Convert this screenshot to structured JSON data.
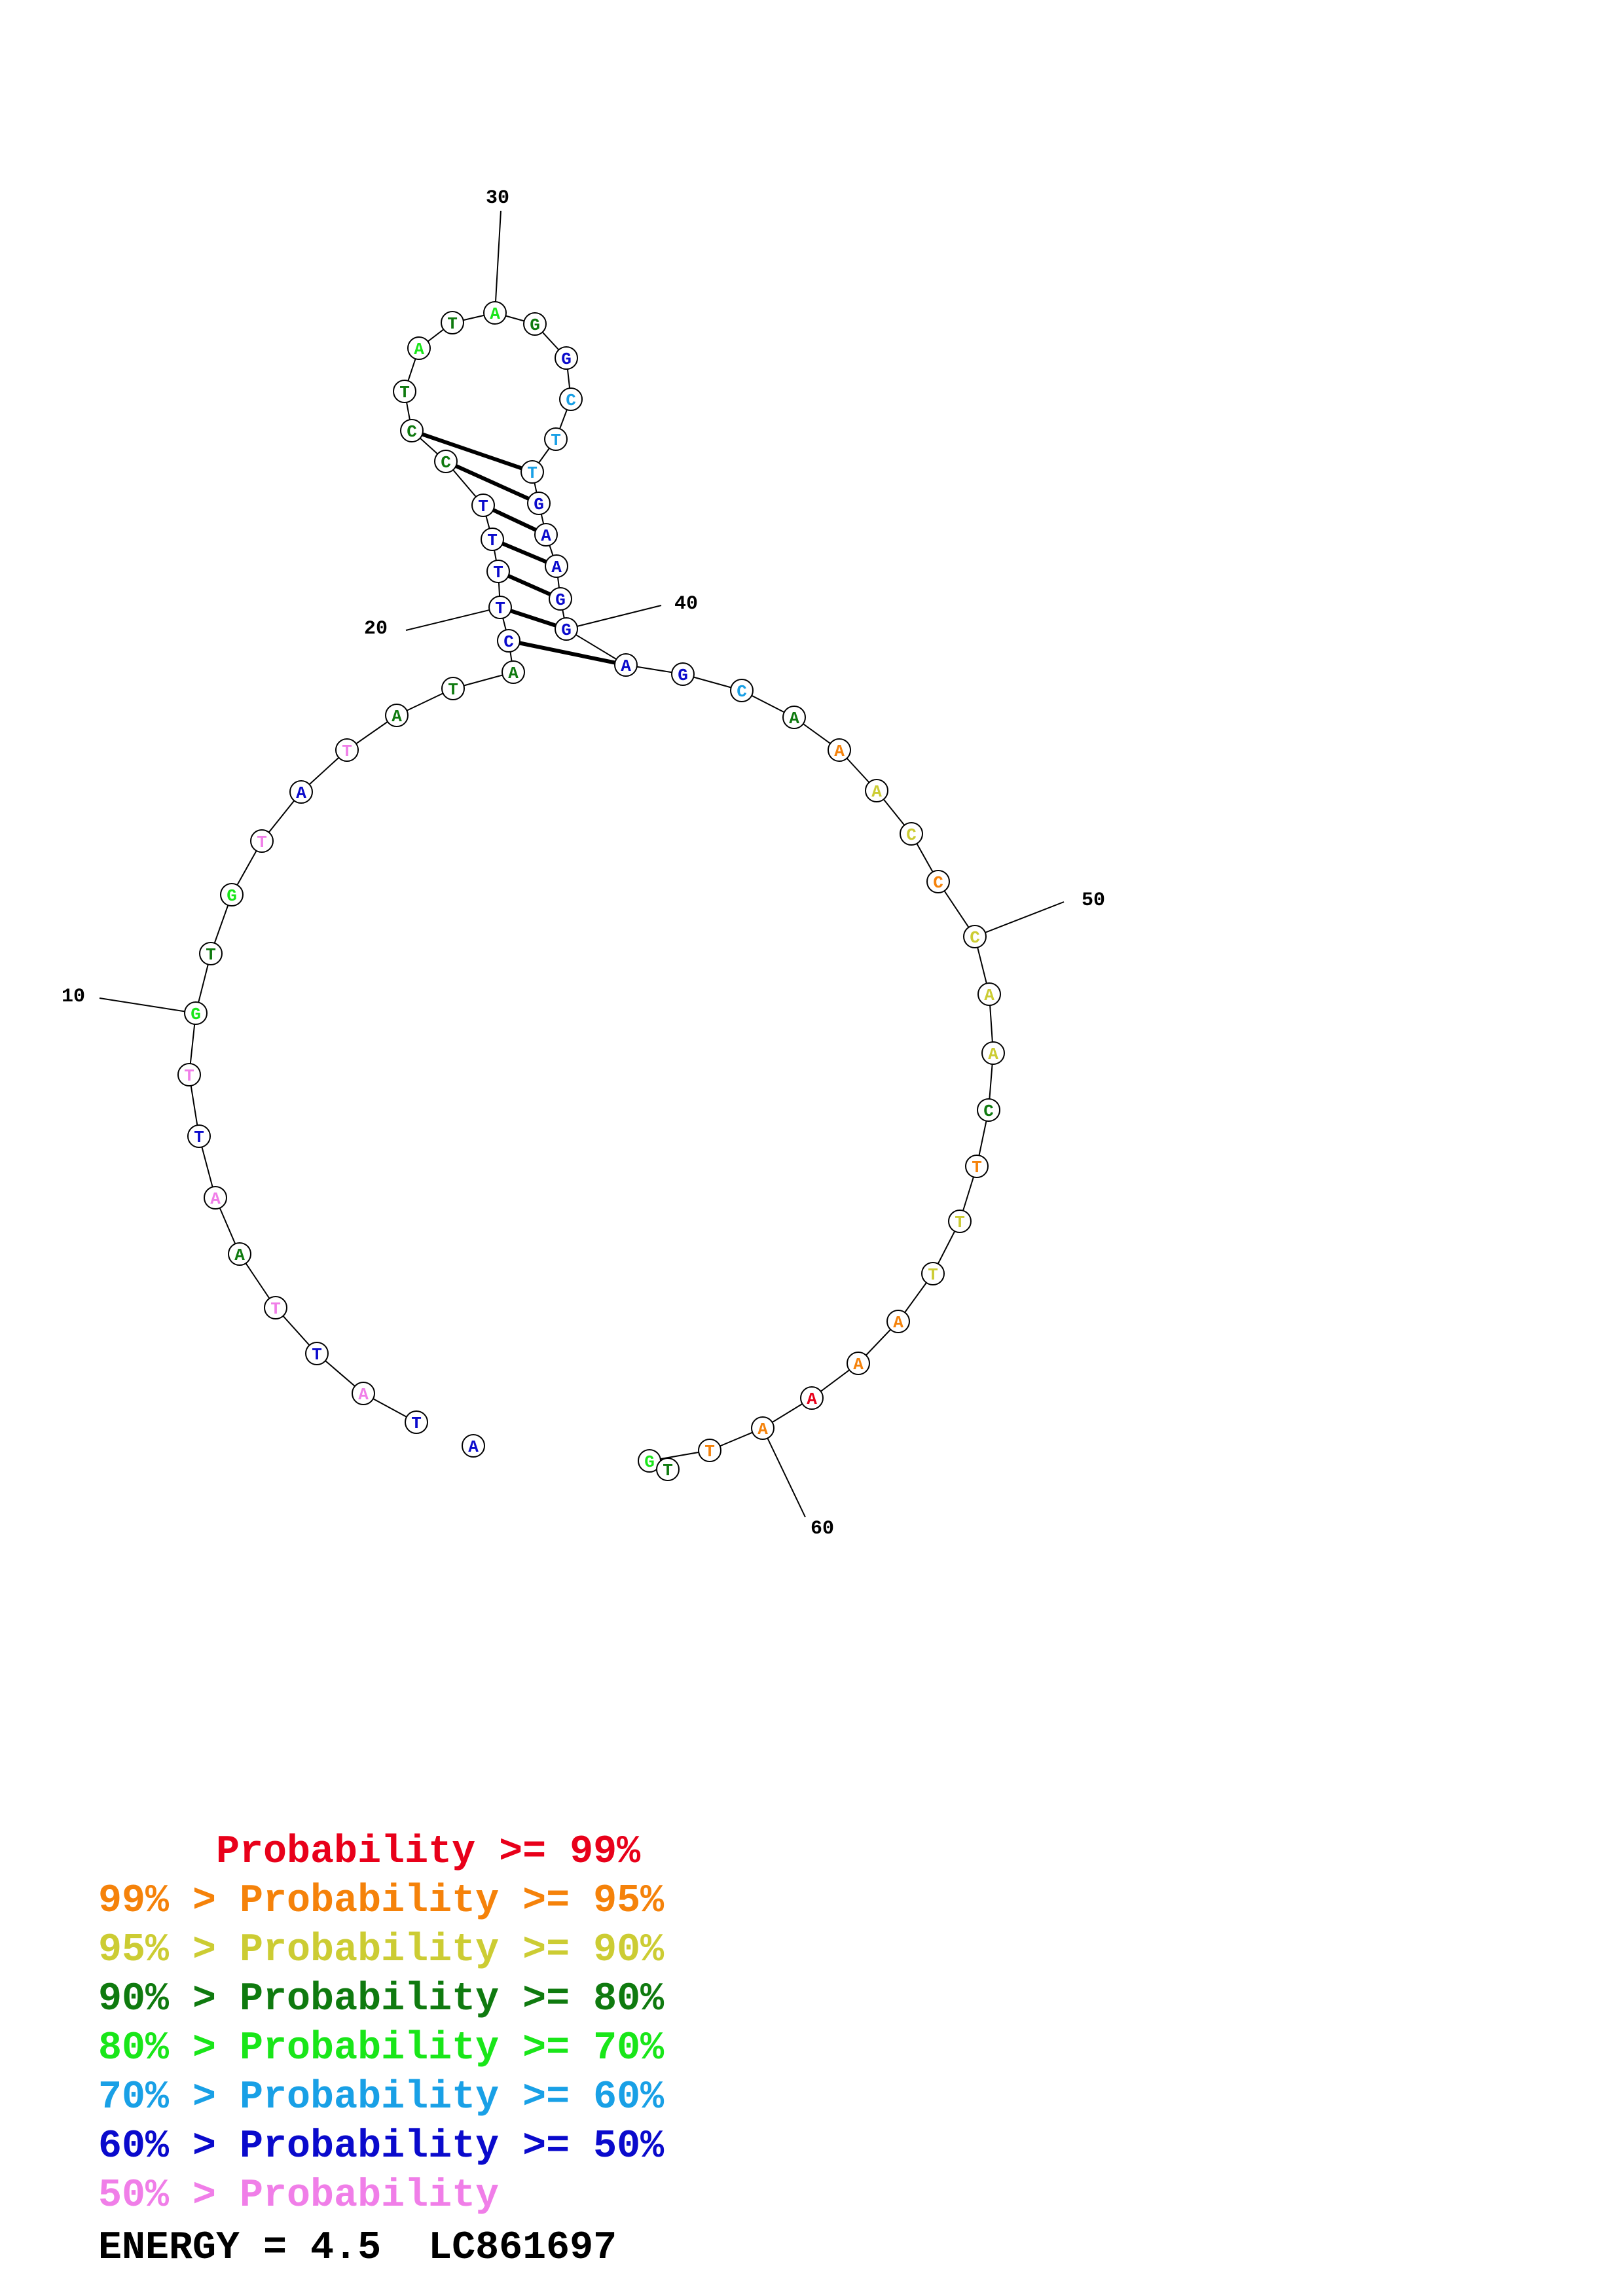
{
  "structure": {
    "sequence": [
      "A",
      "T",
      "A",
      "T",
      "T",
      "A",
      "A",
      "T",
      "T",
      "G",
      "T",
      "G",
      "T",
      "A",
      "T",
      "A",
      "T",
      "A",
      "C",
      "T",
      "T",
      "T",
      "T",
      "C",
      "C",
      "T",
      "A",
      "T",
      "A",
      "G",
      "G",
      "C",
      "T",
      "T",
      "G",
      "A",
      "A",
      "G",
      "G",
      "A",
      "G",
      "C",
      "A",
      "A",
      "A",
      "C",
      "C",
      "C",
      "A",
      "A",
      "C",
      "T",
      "T",
      "T",
      "A",
      "A",
      "A",
      "A",
      "T",
      "G",
      "T"
    ],
    "probability_class": [
      6,
      6,
      7,
      6,
      7,
      3,
      7,
      6,
      7,
      4,
      3,
      4,
      7,
      6,
      7,
      3,
      3,
      3,
      6,
      6,
      6,
      6,
      6,
      3,
      3,
      3,
      4,
      3,
      4,
      3,
      6,
      5,
      5,
      5,
      6,
      6,
      6,
      6,
      6,
      6,
      6,
      5,
      3,
      1,
      2,
      2,
      1,
      2,
      2,
      2,
      3,
      1,
      2,
      2,
      1,
      1,
      0,
      1,
      1,
      4,
      3
    ],
    "pairs": [
      [
        19,
        40
      ],
      [
        20,
        39
      ],
      [
        21,
        38
      ],
      [
        22,
        37
      ],
      [
        23,
        36
      ],
      [
        24,
        35
      ],
      [
        25,
        34
      ]
    ],
    "position_labels": [
      "10",
      "20",
      "30",
      "40",
      "50",
      "60"
    ]
  },
  "colors": {
    "classes": [
      "#e8001a",
      "#f5820a",
      "#cccc33",
      "#0f7a0f",
      "#19e619",
      "#19a0e6",
      "#0a0acc",
      "#f07ee8"
    ]
  },
  "legend": [
    {
      "text": "     Probability >= 99%",
      "color": "#e8001a"
    },
    {
      "text": "99% > Probability >= 95%",
      "color": "#f5820a"
    },
    {
      "text": "95% > Probability >= 90%",
      "color": "#cccc33"
    },
    {
      "text": "90% > Probability >= 80%",
      "color": "#0f7a0f"
    },
    {
      "text": "80% > Probability >= 70%",
      "color": "#19e619"
    },
    {
      "text": "70% > Probability >= 60%",
      "color": "#19a0e6"
    },
    {
      "text": "60% > Probability >= 50%",
      "color": "#0a0acc"
    },
    {
      "text": "50% > Probability",
      "color": "#f07ee8"
    }
  ],
  "energy": "ENERGY = 4.5  LC861697"
}
